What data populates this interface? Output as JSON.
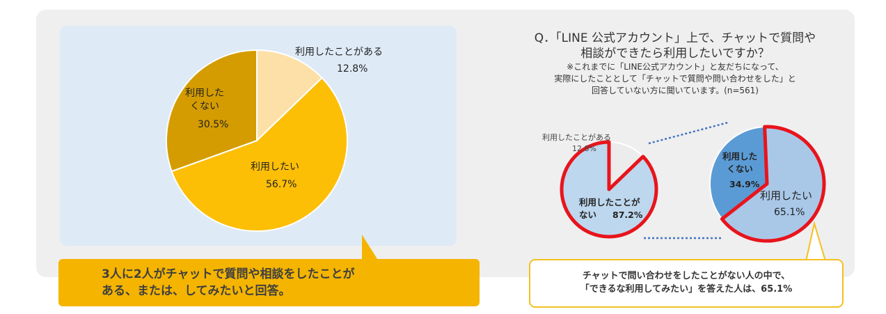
{
  "colors": {
    "panel": "#efefef",
    "inner_panel": "#deeaf6",
    "callout_fill": "#f4b400",
    "callout_border": "#f4c020",
    "pie_left": [
      "#fde0a8",
      "#fdbe06",
      "#d49c00"
    ],
    "pie_mid": [
      "#ececec",
      "#bdd7ee"
    ],
    "pie_right": [
      "#5b9bd5",
      "#a9c8e8"
    ],
    "highlight_ring": "#e8141c",
    "connector": "#4472c4"
  },
  "chart_data": [
    {
      "type": "pie",
      "slices": [
        {
          "label": "利用したことがある",
          "value": 12.8,
          "value_text": "12.8%"
        },
        {
          "label": "利用したい",
          "value": 56.7,
          "value_text": "56.7%"
        },
        {
          "label": "利用した\nくない",
          "value": 30.5,
          "value_text": "30.5%"
        }
      ]
    },
    {
      "type": "pie",
      "slices": [
        {
          "label": "利用したことがある",
          "value": 12.8,
          "value_text": "12.8%"
        },
        {
          "label": "利用したことが\nない",
          "value": 87.2,
          "value_text": "87.2%"
        }
      ]
    },
    {
      "type": "pie",
      "slices": [
        {
          "label": "利用した\nくない",
          "value": 34.9,
          "value_text": "34.9%"
        },
        {
          "label": "利用したい",
          "value": 65.1,
          "value_text": "65.1%"
        }
      ]
    }
  ],
  "question": {
    "line1": "Q．「LINE 公式アカウント」上で、チャットで質問や",
    "line2": "相談ができたら利用したいですか？",
    "note1": "※これまでに「LINE公式アカウント」と友だちになって、",
    "note2": "実際にしたこととして「チャットで質問や問い合わせをした」と",
    "note3": "回答していない方に聞いています。(n=561)"
  },
  "callout_left": {
    "line1": "3人に2人がチャットで質問や相談をしたことが",
    "line2": "ある、または、してみたいと回答。"
  },
  "callout_right": {
    "line1": "チャットで問い合わせをしたことがない人の中で、",
    "line2": "「できるな利用してみたい」を答えた人は、65.1%"
  }
}
